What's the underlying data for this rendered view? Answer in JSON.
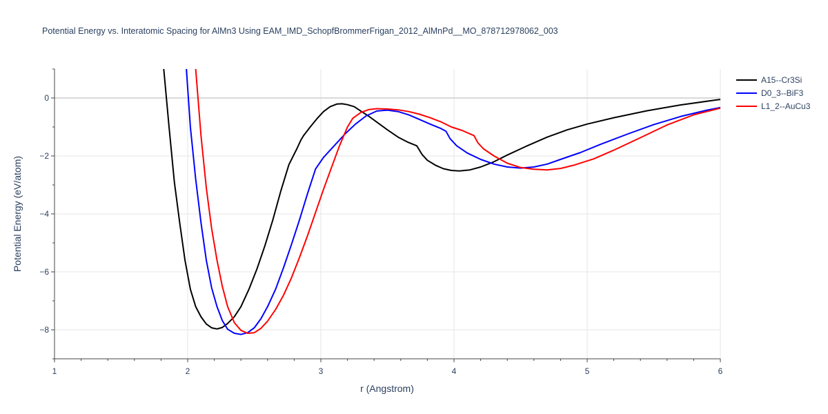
{
  "chart_data": {
    "type": "line",
    "title": "Potential Energy vs. Interatomic Spacing for AlMn3 Using EAM_IMD_SchopfBrommerFrigan_2012_AlMnPd__MO_878712978062_003",
    "xlabel": "r (Angstrom)",
    "ylabel": "Potential Energy (eV/atom)",
    "xlim": [
      1,
      6
    ],
    "ylim": [
      -9,
      1
    ],
    "xticks": [
      1,
      2,
      3,
      4,
      5,
      6
    ],
    "yticks": [
      0,
      -2,
      -4,
      -6,
      -8
    ],
    "xtick_labels": [
      "1",
      "2",
      "3",
      "4",
      "5",
      "6"
    ],
    "ytick_labels": [
      "0",
      "−2",
      "−4",
      "−6",
      "−8"
    ],
    "grid": true,
    "legend_position": "top-right",
    "series": [
      {
        "name": "A15--Cr3Si",
        "color": "#000000",
        "x": [
          1.82,
          1.86,
          1.9,
          1.94,
          1.98,
          2.02,
          2.06,
          2.1,
          2.14,
          2.18,
          2.22,
          2.26,
          2.3,
          2.35,
          2.4,
          2.46,
          2.52,
          2.58,
          2.64,
          2.7,
          2.76,
          2.82,
          2.85,
          2.87,
          2.92,
          2.97,
          3.02,
          3.07,
          3.12,
          3.16,
          3.2,
          3.25,
          3.3,
          3.36,
          3.42,
          3.5,
          3.58,
          3.65,
          3.72,
          3.76,
          3.8,
          3.86,
          3.92,
          3.98,
          4.04,
          4.12,
          4.2,
          4.3,
          4.4,
          4.55,
          4.7,
          4.85,
          5.0,
          5.2,
          5.45,
          5.7,
          5.95,
          6.0
        ],
        "y": [
          1.0,
          -1.0,
          -2.9,
          -4.3,
          -5.6,
          -6.6,
          -7.2,
          -7.55,
          -7.8,
          -7.93,
          -7.97,
          -7.92,
          -7.78,
          -7.55,
          -7.2,
          -6.6,
          -5.9,
          -5.1,
          -4.2,
          -3.2,
          -2.3,
          -1.75,
          -1.45,
          -1.3,
          -1.0,
          -0.72,
          -0.47,
          -0.3,
          -0.21,
          -0.2,
          -0.23,
          -0.3,
          -0.45,
          -0.63,
          -0.83,
          -1.1,
          -1.35,
          -1.52,
          -1.65,
          -1.95,
          -2.15,
          -2.32,
          -2.44,
          -2.5,
          -2.52,
          -2.48,
          -2.38,
          -2.2,
          -1.97,
          -1.65,
          -1.35,
          -1.1,
          -0.9,
          -0.68,
          -0.44,
          -0.24,
          -0.08,
          -0.05
        ]
      },
      {
        "name": "D0_3--BiF3",
        "color": "#0000ff",
        "x": [
          1.99,
          2.02,
          2.06,
          2.1,
          2.14,
          2.18,
          2.22,
          2.26,
          2.3,
          2.35,
          2.4,
          2.45,
          2.5,
          2.55,
          2.6,
          2.66,
          2.72,
          2.78,
          2.84,
          2.9,
          2.96,
          3.02,
          3.1,
          3.18,
          3.26,
          3.34,
          3.42,
          3.5,
          3.58,
          3.66,
          3.74,
          3.82,
          3.9,
          3.94,
          3.97,
          4.02,
          4.1,
          4.2,
          4.3,
          4.4,
          4.5,
          4.6,
          4.7,
          4.8,
          4.95,
          5.1,
          5.3,
          5.5,
          5.7,
          5.9,
          6.0
        ],
        "y": [
          1.0,
          -1.0,
          -2.8,
          -4.3,
          -5.6,
          -6.55,
          -7.2,
          -7.68,
          -7.98,
          -8.12,
          -8.16,
          -8.1,
          -7.93,
          -7.62,
          -7.2,
          -6.6,
          -5.85,
          -5.05,
          -4.2,
          -3.3,
          -2.45,
          -2.05,
          -1.65,
          -1.25,
          -0.9,
          -0.62,
          -0.45,
          -0.42,
          -0.47,
          -0.58,
          -0.74,
          -0.9,
          -1.05,
          -1.15,
          -1.4,
          -1.65,
          -1.9,
          -2.12,
          -2.28,
          -2.38,
          -2.42,
          -2.38,
          -2.28,
          -2.12,
          -1.88,
          -1.6,
          -1.25,
          -0.92,
          -0.64,
          -0.42,
          -0.33
        ]
      },
      {
        "name": "L1_2--AuCu3",
        "color": "#ff0000",
        "x": [
          2.06,
          2.1,
          2.14,
          2.18,
          2.22,
          2.26,
          2.3,
          2.35,
          2.4,
          2.45,
          2.5,
          2.55,
          2.6,
          2.66,
          2.72,
          2.78,
          2.84,
          2.9,
          2.96,
          3.02,
          3.08,
          3.14,
          3.2,
          3.24,
          3.3,
          3.36,
          3.42,
          3.5,
          3.58,
          3.66,
          3.74,
          3.82,
          3.9,
          3.98,
          4.06,
          4.15,
          4.18,
          4.22,
          4.3,
          4.4,
          4.5,
          4.6,
          4.7,
          4.8,
          4.9,
          5.05,
          5.2,
          5.4,
          5.6,
          5.8,
          6.0
        ],
        "y": [
          1.0,
          -1.3,
          -3.1,
          -4.5,
          -5.6,
          -6.5,
          -7.2,
          -7.75,
          -8.02,
          -8.12,
          -8.1,
          -7.95,
          -7.7,
          -7.3,
          -6.8,
          -6.2,
          -5.5,
          -4.75,
          -3.95,
          -3.15,
          -2.4,
          -1.65,
          -1.0,
          -0.7,
          -0.5,
          -0.4,
          -0.37,
          -0.38,
          -0.41,
          -0.47,
          -0.56,
          -0.68,
          -0.82,
          -1.0,
          -1.12,
          -1.3,
          -1.55,
          -1.75,
          -2.0,
          -2.25,
          -2.4,
          -2.46,
          -2.48,
          -2.43,
          -2.32,
          -2.1,
          -1.8,
          -1.37,
          -0.93,
          -0.58,
          -0.35
        ]
      }
    ]
  }
}
